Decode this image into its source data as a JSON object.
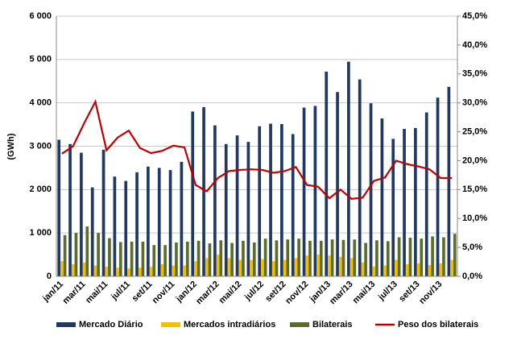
{
  "chart_data": {
    "type": "bar-line",
    "ylabel": "(GWh)",
    "categories": [
      "jan/11",
      null,
      "mar/11",
      null,
      "mai/11",
      null,
      "jul/11",
      null,
      "set/11",
      null,
      "nov/11",
      null,
      "jan/12",
      null,
      "mar/12",
      null,
      "mai/12",
      null,
      "jul/12",
      null,
      "set/12",
      null,
      "nov/12",
      null,
      "jan/13",
      null,
      "mar/13",
      null,
      "mai/13",
      null,
      "jul/13",
      null,
      "set/13",
      null,
      "nov/13",
      null
    ],
    "series": [
      {
        "name": "Mercado Diário",
        "color": "#1f3864",
        "kind": "bar",
        "values": [
          3150,
          3050,
          2850,
          2050,
          2920,
          2300,
          2200,
          2400,
          2530,
          2500,
          2450,
          2640,
          3800,
          3900,
          3480,
          3050,
          3250,
          3100,
          3460,
          3520,
          3510,
          3280,
          3890,
          3930,
          4720,
          4250,
          4950,
          4540,
          3990,
          3640,
          3170,
          3400,
          3420,
          3780,
          4120,
          4370
        ]
      },
      {
        "name": "Mercados intradiários",
        "color": "#f5c000",
        "kind": "bar",
        "values": [
          350,
          280,
          320,
          250,
          220,
          200,
          180,
          200,
          220,
          280,
          250,
          250,
          350,
          420,
          500,
          420,
          380,
          380,
          400,
          350,
          380,
          420,
          480,
          500,
          480,
          450,
          420,
          320,
          230,
          250,
          380,
          280,
          300,
          260,
          300,
          380
        ]
      },
      {
        "name": "Bilaterais",
        "color": "#5a6e2c",
        "kind": "bar",
        "values": [
          950,
          1000,
          1150,
          1000,
          880,
          790,
          800,
          800,
          720,
          720,
          780,
          800,
          820,
          760,
          830,
          770,
          820,
          780,
          870,
          830,
          850,
          870,
          820,
          820,
          850,
          840,
          850,
          770,
          830,
          810,
          900,
          890,
          870,
          920,
          900,
          980
        ]
      },
      {
        "name": "Peso dos bilaterais",
        "color": "#c00000",
        "kind": "line",
        "axis": "y2",
        "values": [
          21.2,
          22.5,
          26.5,
          30.2,
          21.8,
          24,
          25.2,
          22.2,
          21.3,
          21.7,
          22.6,
          22.3,
          15.8,
          14.7,
          17,
          18.2,
          18.4,
          18.5,
          18.4,
          17.9,
          18.2,
          18.9,
          15.8,
          15.5,
          13.5,
          15,
          13.4,
          13.6,
          16.5,
          17.1,
          20,
          19.4,
          19,
          18.5,
          17,
          17
        ]
      }
    ],
    "ylim": [
      0,
      6000
    ],
    "yticks": [
      0,
      {
        "value": 1000,
        "label": "1 000"
      },
      {
        "value": 2000,
        "label": "2 000"
      },
      {
        "value": 3000,
        "label": "3 000"
      },
      {
        "value": 4000,
        "label": "4 000"
      },
      {
        "value": 5000,
        "label": "5 000"
      },
      {
        "value": 6000,
        "label": "6 000"
      }
    ],
    "y2lim": [
      0,
      45
    ],
    "y2ticks": [
      {
        "value": 0,
        "label": "0,0%"
      },
      {
        "value": 5,
        "label": "5,0%"
      },
      {
        "value": 10,
        "label": "10,0%"
      },
      {
        "value": 15,
        "label": "15,0%"
      },
      {
        "value": 20,
        "label": "20,0%"
      },
      {
        "value": 25,
        "label": "25,0%"
      },
      {
        "value": 30,
        "label": "30,0%"
      },
      {
        "value": 35,
        "label": "35,0%"
      },
      {
        "value": 40,
        "label": "40,0%"
      },
      {
        "value": 45,
        "label": "45,0%"
      }
    ],
    "grid": true,
    "legend": "bottom"
  }
}
